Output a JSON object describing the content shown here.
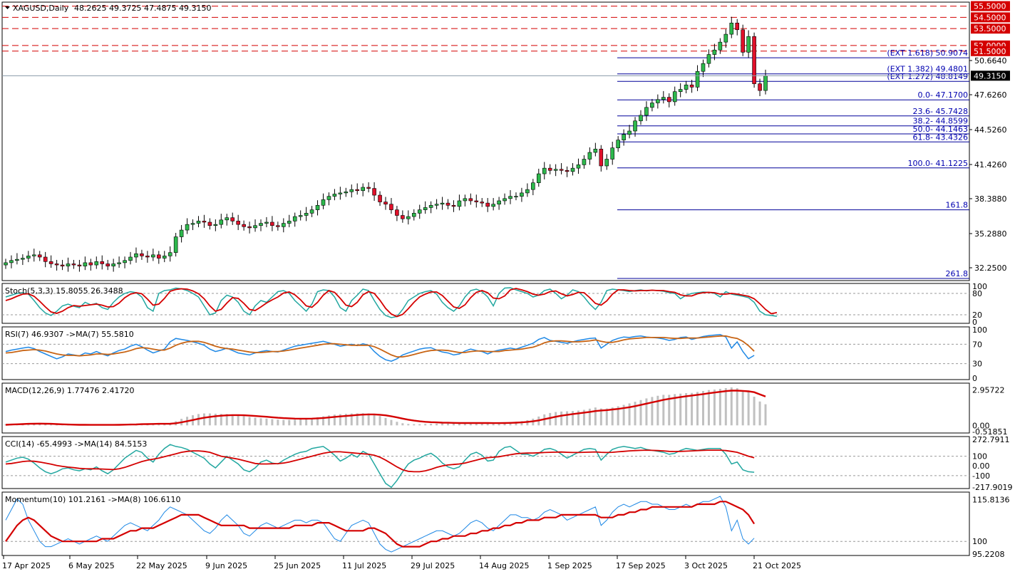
{
  "header": {
    "symbol": "XAGUSD,Daily",
    "ohlc": "48.2625 49.3725 47.4875 49.3150"
  },
  "price_axis": [
    "50.6640",
    "47.6260",
    "44.5260",
    "41.4260",
    "38.3880",
    "35.2880",
    "32.2500"
  ],
  "current_price": "49.3150",
  "levels": [
    {
      "label": "55.5000",
      "value": 55.5
    },
    {
      "label": "54.5000",
      "value": 54.5
    },
    {
      "label": "53.5000",
      "value": 53.5
    },
    {
      "label": "52.0000",
      "value": 52.0
    },
    {
      "label": "51.5000",
      "value": 51.5
    }
  ],
  "fibo": [
    {
      "label": "(EXT 1.618)  50.9074",
      "value": 50.9074
    },
    {
      "label": "(EXT 1.382)  49.4801",
      "value": 49.4801
    },
    {
      "label": "(EXT 1.272)  48.8149",
      "value": 48.8149
    },
    {
      "label": "0.0- 47.1700",
      "value": 47.17
    },
    {
      "label": "23.6- 45.7428",
      "value": 45.7428
    },
    {
      "label": "38.2- 44.8599",
      "value": 44.8599
    },
    {
      "label": "50.0- 44.1463",
      "value": 44.1463
    },
    {
      "label": "61.8- 43.4326",
      "value": 43.4326
    },
    {
      "label": "100.0- 41.1225",
      "value": 41.1225
    },
    {
      "label": "161.8",
      "value": 37.4
    },
    {
      "label": "261.8",
      "value": 31.3
    }
  ],
  "indicators": {
    "stoch": {
      "title": "Stoch(5,3,3) 15.8055 26.3488",
      "axis": [
        "100",
        "80",
        "20",
        "0"
      ]
    },
    "rsi": {
      "title": "RSI(7) 46.9307  ->MA(7) 55.5810",
      "axis": [
        "100",
        "70",
        "30",
        "0"
      ]
    },
    "macd": {
      "title": "MACD(12,26,9) 1.77476 2.41720",
      "axis": [
        "2.95722",
        "0.00",
        "-0.51851"
      ]
    },
    "cci": {
      "title": "CCI(14) -65.4993  ->MA(14) 84.5153",
      "axis": [
        "272.7911",
        "100",
        "0.00",
        "-100",
        "-217.9019"
      ]
    },
    "momentum": {
      "title": "Momentum(10) 101.2161  ->MA(8) 106.6110",
      "axis": [
        "115.8136",
        "100",
        "95.2208"
      ]
    }
  },
  "date_axis": [
    "17 Apr 2025",
    "6 May 2025",
    "22 May 2025",
    "9 Jun 2025",
    "25 Jun 2025",
    "11 Jul 2025",
    "29 Jul 2025",
    "14 Aug 2025",
    "1 Sep 2025",
    "17 Sep 2025",
    "3 Oct 2025",
    "21 Oct 2025"
  ],
  "colors": {
    "bull": "#2db84c",
    "bear": "#e0102a",
    "signal": "#d40000",
    "rsi_ma": "#c86414",
    "osc": "#1e88e5",
    "cci": "#22a7a0",
    "fibo": "#00009a",
    "level": "#d40000"
  },
  "chart_data": {
    "type": "candlestick",
    "close": [
      32.7,
      32.9,
      33.0,
      33.1,
      33.3,
      33.4,
      33.2,
      32.8,
      32.6,
      32.5,
      32.4,
      32.6,
      32.5,
      32.4,
      32.7,
      32.5,
      32.8,
      32.6,
      32.4,
      32.6,
      32.7,
      32.9,
      33.2,
      33.5,
      33.3,
      33.2,
      33.4,
      33.1,
      33.3,
      33.6,
      35.0,
      35.6,
      36.1,
      36.2,
      36.4,
      36.3,
      36.0,
      36.1,
      36.5,
      36.7,
      36.4,
      36.1,
      35.9,
      35.8,
      36.0,
      36.2,
      36.3,
      36.0,
      35.9,
      36.2,
      36.4,
      36.8,
      36.9,
      37.1,
      37.4,
      37.8,
      38.3,
      38.6,
      38.8,
      38.9,
      39.0,
      39.2,
      39.1,
      39.4,
      39.3,
      38.7,
      38.1,
      37.9,
      37.4,
      36.9,
      36.6,
      36.8,
      37.1,
      37.4,
      37.6,
      37.8,
      37.9,
      38.0,
      37.8,
      37.7,
      38.2,
      38.4,
      38.2,
      38.1,
      38.0,
      37.7,
      37.9,
      38.2,
      38.4,
      38.6,
      38.6,
      38.9,
      39.2,
      39.8,
      40.6,
      41.1,
      40.9,
      41.0,
      40.9,
      40.8,
      41.1,
      41.4,
      41.9,
      42.5,
      42.8,
      41.3,
      41.9,
      42.9,
      43.6,
      44.1,
      44.4,
      45.3,
      45.8,
      46.5,
      46.9,
      47.2,
      47.4,
      47.0,
      47.9,
      48.1,
      48.5,
      48.3,
      49.7,
      50.4,
      51.2,
      51.6,
      52.3,
      53.0,
      54.0,
      53.4,
      51.4,
      52.8,
      48.6,
      48.0,
      49.3
    ],
    "stoch_k": [
      70,
      75,
      80,
      82,
      78,
      60,
      40,
      25,
      18,
      30,
      45,
      50,
      44,
      40,
      55,
      48,
      52,
      40,
      35,
      55,
      70,
      80,
      85,
      82,
      70,
      40,
      30,
      80,
      88,
      90,
      95,
      93,
      88,
      80,
      70,
      45,
      20,
      25,
      60,
      75,
      70,
      55,
      30,
      20,
      45,
      60,
      55,
      70,
      85,
      88,
      80,
      60,
      45,
      30,
      50,
      85,
      90,
      88,
      70,
      40,
      30,
      60,
      75,
      92,
      88,
      60,
      35,
      18,
      12,
      15,
      35,
      60,
      70,
      80,
      85,
      88,
      78,
      55,
      40,
      30,
      45,
      70,
      88,
      92,
      85,
      70,
      45,
      80,
      95,
      96,
      90,
      85,
      80,
      70,
      75,
      88,
      92,
      80,
      65,
      75,
      90,
      85,
      70,
      50,
      35,
      55,
      88,
      92,
      90,
      88,
      85,
      88,
      90,
      87,
      89,
      88,
      86,
      82,
      80,
      65,
      75,
      80,
      82,
      84,
      83,
      80,
      70,
      85,
      78,
      75,
      72,
      68,
      55,
      30,
      20,
      18,
      15.8
    ],
    "stoch_d": [
      60,
      65,
      72,
      78,
      79,
      72,
      58,
      42,
      28,
      24,
      30,
      40,
      46,
      44,
      46,
      48,
      50,
      47,
      42,
      43,
      53,
      68,
      78,
      82,
      79,
      64,
      47,
      50,
      66,
      86,
      91,
      93,
      92,
      87,
      79,
      65,
      45,
      30,
      35,
      53,
      68,
      66,
      52,
      35,
      32,
      42,
      53,
      62,
      70,
      81,
      84,
      76,
      62,
      45,
      41,
      55,
      75,
      88,
      83,
      66,
      47,
      43,
      55,
      76,
      85,
      80,
      61,
      38,
      22,
      15,
      21,
      37,
      55,
      70,
      78,
      84,
      84,
      74,
      58,
      42,
      38,
      48,
      68,
      83,
      88,
      82,
      67,
      65,
      73,
      90,
      94,
      90,
      85,
      78,
      75,
      78,
      85,
      87,
      79,
      73,
      77,
      83,
      82,
      68,
      52,
      47,
      59,
      78,
      90,
      90,
      88,
      87,
      88,
      88,
      89,
      88,
      88,
      85,
      83,
      76,
      73,
      73,
      79,
      82,
      83,
      82,
      78,
      78,
      80,
      78,
      75,
      72,
      65,
      51,
      35,
      23,
      26.3
    ],
    "rsi": [
      55,
      58,
      60,
      62,
      64,
      61,
      55,
      50,
      45,
      40,
      44,
      50,
      48,
      46,
      52,
      50,
      55,
      50,
      46,
      52,
      57,
      60,
      66,
      70,
      65,
      58,
      52,
      56,
      60,
      75,
      82,
      80,
      78,
      75,
      72,
      68,
      60,
      55,
      58,
      62,
      57,
      52,
      50,
      48,
      52,
      55,
      57,
      55,
      54,
      58,
      62,
      66,
      68,
      70,
      72,
      74,
      76,
      73,
      70,
      66,
      68,
      70,
      67,
      71,
      68,
      55,
      45,
      38,
      35,
      40,
      48,
      52,
      56,
      60,
      62,
      63,
      58,
      54,
      52,
      48,
      50,
      56,
      60,
      57,
      55,
      50,
      55,
      58,
      60,
      62,
      60,
      64,
      68,
      72,
      80,
      84,
      78,
      76,
      74,
      72,
      75,
      78,
      80,
      82,
      83,
      62,
      70,
      78,
      82,
      85,
      84,
      86,
      87,
      85,
      84,
      83,
      81,
      78,
      80,
      84,
      85,
      80,
      83,
      86,
      88,
      89,
      90,
      85,
      62,
      75,
      55,
      40,
      47
    ],
    "rsi_ma": [
      52,
      53,
      55,
      57,
      58,
      59,
      58,
      56,
      53,
      50,
      48,
      47,
      47,
      46,
      47,
      48,
      50,
      50,
      49,
      50,
      52,
      54,
      57,
      61,
      63,
      62,
      60,
      58,
      58,
      62,
      68,
      72,
      75,
      76,
      76,
      74,
      70,
      66,
      63,
      61,
      60,
      58,
      56,
      54,
      53,
      53,
      54,
      55,
      55,
      56,
      58,
      60,
      62,
      64,
      66,
      68,
      70,
      71,
      71,
      70,
      69,
      68,
      68,
      68,
      68,
      65,
      60,
      54,
      48,
      44,
      44,
      46,
      49,
      52,
      55,
      57,
      58,
      58,
      57,
      55,
      53,
      53,
      55,
      56,
      56,
      55,
      55,
      55,
      57,
      58,
      59,
      60,
      62,
      64,
      68,
      73,
      76,
      77,
      77,
      76,
      75,
      75,
      76,
      77,
      79,
      76,
      74,
      74,
      76,
      79,
      81,
      82,
      83,
      84,
      84,
      84,
      84,
      83,
      82,
      82,
      83,
      83,
      83,
      84,
      85,
      86,
      87,
      87,
      84,
      82,
      76,
      67,
      55.6
    ],
    "macd_hist": [
      0.1,
      0.12,
      0.14,
      0.16,
      0.18,
      0.18,
      0.16,
      0.12,
      0.08,
      0.04,
      0.02,
      0.02,
      0.02,
      0.02,
      0.03,
      0.03,
      0.04,
      0.04,
      0.04,
      0.05,
      0.06,
      0.08,
      0.1,
      0.13,
      0.15,
      0.15,
      0.15,
      0.14,
      0.14,
      0.18,
      0.35,
      0.55,
      0.72,
      0.85,
      0.95,
      1.0,
      1.0,
      0.98,
      0.96,
      0.95,
      0.92,
      0.86,
      0.78,
      0.7,
      0.64,
      0.6,
      0.57,
      0.52,
      0.48,
      0.46,
      0.46,
      0.48,
      0.52,
      0.56,
      0.62,
      0.68,
      0.76,
      0.84,
      0.9,
      0.94,
      0.97,
      1.0,
      1.0,
      1.02,
      1.0,
      0.92,
      0.78,
      0.62,
      0.46,
      0.3,
      0.18,
      0.12,
      0.1,
      0.1,
      0.12,
      0.14,
      0.15,
      0.16,
      0.16,
      0.15,
      0.16,
      0.18,
      0.2,
      0.2,
      0.2,
      0.18,
      0.18,
      0.2,
      0.24,
      0.28,
      0.3,
      0.36,
      0.44,
      0.56,
      0.74,
      0.92,
      1.04,
      1.12,
      1.16,
      1.18,
      1.2,
      1.24,
      1.3,
      1.4,
      1.5,
      1.42,
      1.42,
      1.5,
      1.6,
      1.72,
      1.84,
      1.98,
      2.12,
      2.26,
      2.38,
      2.48,
      2.56,
      2.56,
      2.62,
      2.66,
      2.7,
      2.72,
      2.8,
      2.88,
      2.96,
      3.0,
      3.06,
      3.12,
      3.18,
      3.12,
      2.9,
      2.8,
      2.4,
      2.0,
      1.77
    ],
    "macd_signal": [
      0.05,
      0.07,
      0.09,
      0.11,
      0.13,
      0.14,
      0.15,
      0.14,
      0.13,
      0.11,
      0.09,
      0.07,
      0.06,
      0.05,
      0.05,
      0.04,
      0.04,
      0.04,
      0.04,
      0.04,
      0.05,
      0.06,
      0.07,
      0.08,
      0.1,
      0.11,
      0.12,
      0.13,
      0.13,
      0.14,
      0.18,
      0.26,
      0.35,
      0.45,
      0.55,
      0.64,
      0.71,
      0.77,
      0.81,
      0.84,
      0.86,
      0.86,
      0.85,
      0.82,
      0.79,
      0.75,
      0.72,
      0.68,
      0.64,
      0.61,
      0.59,
      0.57,
      0.56,
      0.56,
      0.57,
      0.59,
      0.62,
      0.66,
      0.71,
      0.75,
      0.79,
      0.83,
      0.87,
      0.9,
      0.92,
      0.92,
      0.89,
      0.84,
      0.76,
      0.67,
      0.57,
      0.48,
      0.4,
      0.34,
      0.3,
      0.27,
      0.25,
      0.23,
      0.22,
      0.21,
      0.2,
      0.2,
      0.2,
      0.2,
      0.2,
      0.2,
      0.19,
      0.19,
      0.2,
      0.21,
      0.23,
      0.25,
      0.29,
      0.34,
      0.42,
      0.52,
      0.62,
      0.72,
      0.81,
      0.88,
      0.95,
      1.01,
      1.07,
      1.13,
      1.2,
      1.25,
      1.28,
      1.33,
      1.38,
      1.45,
      1.52,
      1.61,
      1.71,
      1.82,
      1.93,
      2.03,
      2.14,
      2.22,
      2.3,
      2.37,
      2.44,
      2.5,
      2.56,
      2.62,
      2.69,
      2.75,
      2.81,
      2.87,
      2.91,
      2.91,
      2.89,
      2.85,
      2.78,
      2.6,
      2.42
    ],
    "cci": [
      40,
      60,
      80,
      90,
      70,
      30,
      -20,
      -60,
      -80,
      -60,
      -30,
      -20,
      -40,
      -50,
      -30,
      -40,
      -10,
      -50,
      -80,
      -40,
      20,
      80,
      120,
      160,
      140,
      80,
      40,
      120,
      180,
      220,
      200,
      190,
      170,
      140,
      110,
      80,
      20,
      -20,
      40,
      100,
      60,
      20,
      -40,
      -60,
      -20,
      40,
      60,
      30,
      20,
      60,
      90,
      120,
      140,
      150,
      180,
      190,
      200,
      160,
      110,
      50,
      80,
      120,
      90,
      150,
      120,
      20,
      -80,
      -180,
      -220,
      -150,
      -60,
      20,
      60,
      80,
      110,
      130,
      90,
      30,
      -10,
      -30,
      -10,
      60,
      120,
      140,
      110,
      50,
      60,
      150,
      190,
      200,
      160,
      120,
      120,
      100,
      130,
      170,
      180,
      160,
      120,
      80,
      110,
      140,
      170,
      180,
      170,
      60,
      120,
      170,
      190,
      200,
      190,
      180,
      190,
      170,
      160,
      150,
      140,
      120,
      130,
      160,
      180,
      170,
      160,
      170,
      180,
      180,
      180,
      120,
      20,
      40,
      -40,
      -60,
      -65
    ],
    "cci_ma": [
      20,
      25,
      35,
      45,
      50,
      48,
      40,
      30,
      18,
      5,
      -5,
      -12,
      -18,
      -25,
      -28,
      -30,
      -30,
      -32,
      -35,
      -38,
      -30,
      -15,
      5,
      25,
      45,
      60,
      70,
      80,
      95,
      110,
      125,
      140,
      150,
      155,
      155,
      150,
      140,
      120,
      100,
      90,
      80,
      70,
      55,
      40,
      25,
      20,
      20,
      22,
      24,
      30,
      40,
      55,
      70,
      85,
      100,
      115,
      130,
      140,
      145,
      145,
      140,
      135,
      130,
      125,
      120,
      110,
      90,
      60,
      25,
      -10,
      -40,
      -55,
      -60,
      -60,
      -50,
      -35,
      -15,
      0,
      10,
      15,
      20,
      30,
      45,
      60,
      75,
      85,
      90,
      95,
      105,
      115,
      125,
      130,
      132,
      133,
      135,
      138,
      140,
      142,
      143,
      140,
      138,
      138,
      140,
      142,
      144,
      140,
      138,
      140,
      145,
      150,
      155,
      158,
      160,
      162,
      160,
      158,
      155,
      150,
      148,
      150,
      152,
      155,
      158,
      160,
      162,
      162,
      162,
      158,
      150,
      140,
      120,
      100,
      84.5
    ],
    "mom": [
      108,
      112,
      116,
      114,
      108,
      104,
      100,
      98,
      98,
      99,
      100,
      101,
      100,
      99,
      100,
      101,
      102,
      101,
      100,
      102,
      104,
      106,
      107,
      106,
      105,
      104,
      106,
      108,
      111,
      113,
      112,
      111,
      110,
      108,
      106,
      104,
      103,
      105,
      108,
      110,
      108,
      106,
      103,
      102,
      104,
      106,
      107,
      106,
      105,
      106,
      107,
      108,
      108,
      107,
      108,
      108,
      107,
      104,
      101,
      100,
      103,
      106,
      107,
      108,
      107,
      103,
      99,
      97,
      96,
      97,
      98,
      99,
      100,
      101,
      102,
      103,
      104,
      104,
      103,
      102,
      103,
      105,
      107,
      108,
      107,
      105,
      104,
      106,
      108,
      110,
      110,
      109,
      109,
      108,
      109,
      111,
      112,
      111,
      110,
      108,
      109,
      110,
      111,
      112,
      113,
      106,
      108,
      111,
      113,
      114,
      113,
      114,
      115,
      115,
      114,
      114,
      113,
      112,
      112,
      113,
      114,
      113,
      114,
      115,
      115,
      116,
      117,
      113,
      104,
      108,
      101,
      99,
      101.2
    ],
    "mom_ma": [
      100,
      103,
      106,
      108,
      109,
      108,
      106,
      104,
      102,
      101,
      100,
      100,
      100,
      100,
      100,
      100,
      100,
      101,
      101,
      101,
      102,
      103,
      104,
      104,
      105,
      105,
      105,
      106,
      107,
      108,
      109,
      110,
      110,
      110,
      110,
      109,
      108,
      107,
      106,
      106,
      106,
      106,
      106,
      105,
      105,
      105,
      105,
      105,
      105,
      105,
      105,
      106,
      106,
      106,
      106,
      107,
      107,
      107,
      106,
      105,
      104,
      104,
      104,
      104,
      105,
      105,
      104,
      103,
      101,
      99,
      98,
      98,
      98,
      98,
      99,
      100,
      100,
      101,
      101,
      102,
      102,
      102,
      103,
      103,
      104,
      104,
      105,
      105,
      106,
      106,
      107,
      107,
      108,
      108,
      108,
      109,
      109,
      109,
      110,
      110,
      110,
      110,
      110,
      110,
      110,
      109,
      109,
      109,
      110,
      110,
      111,
      111,
      112,
      112,
      113,
      113,
      113,
      113,
      113,
      113,
      113,
      113,
      114,
      114,
      114,
      114,
      115,
      115,
      114,
      113,
      112,
      110,
      106.6
    ]
  }
}
